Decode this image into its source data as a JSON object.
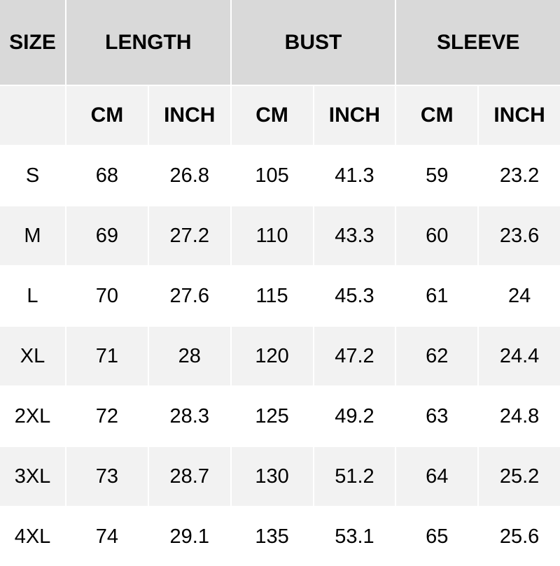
{
  "header": {
    "size": "SIZE",
    "groups": [
      "LENGTH",
      "BUST",
      "SLEEVE"
    ]
  },
  "subheader": [
    "CM",
    "INCH",
    "CM",
    "INCH",
    "CM",
    "INCH"
  ],
  "rows": [
    [
      "S",
      "68",
      "26.8",
      "105",
      "41.3",
      "59",
      "23.2"
    ],
    [
      "M",
      "69",
      "27.2",
      "110",
      "43.3",
      "60",
      "23.6"
    ],
    [
      "L",
      "70",
      "27.6",
      "115",
      "45.3",
      "61",
      "24"
    ],
    [
      "XL",
      "71",
      "28",
      "120",
      "47.2",
      "62",
      "24.4"
    ],
    [
      "2XL",
      "72",
      "28.3",
      "125",
      "49.2",
      "63",
      "24.8"
    ],
    [
      "3XL",
      "73",
      "28.7",
      "130",
      "51.2",
      "64",
      "25.2"
    ],
    [
      "4XL",
      "74",
      "29.1",
      "135",
      "53.1",
      "65",
      "25.6"
    ]
  ],
  "colors": {
    "header_bg": "#d9d9d9",
    "alt_row_bg": "#f2f2f2",
    "row_bg": "#ffffff"
  }
}
